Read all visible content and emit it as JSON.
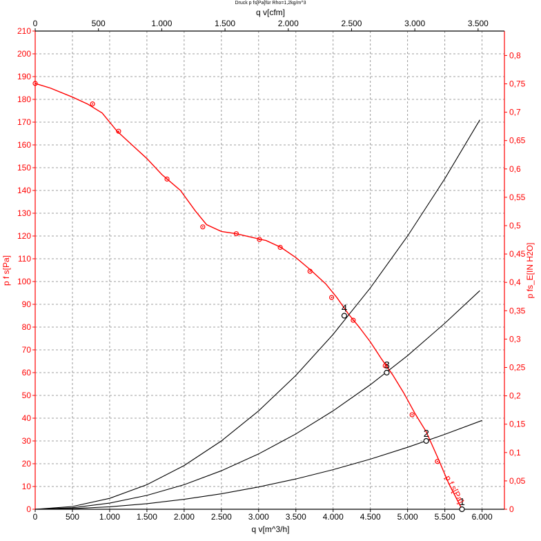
{
  "chart_data": {
    "type": "line",
    "title": "Druck p fs[Pa]für Rho=1,2kg/m^3",
    "top_axis": {
      "label": "q v[cfm]",
      "ticks": [
        "0",
        "500",
        "1.000",
        "1.500",
        "2.000",
        "2.500",
        "3.000",
        "3.500"
      ],
      "tick_values": [
        0,
        500,
        1000,
        1500,
        2000,
        2500,
        3000,
        3500
      ]
    },
    "x_axis": {
      "label": "q v[m^3/h]",
      "range": [
        0,
        6300
      ],
      "ticks": [
        "0",
        "500",
        "1.000",
        "1.500",
        "2.000",
        "2.500",
        "3.000",
        "3.500",
        "4.000",
        "4.500",
        "5.000",
        "5.500",
        "6.000"
      ],
      "tick_values": [
        0,
        500,
        1000,
        1500,
        2000,
        2500,
        3000,
        3500,
        4000,
        4500,
        5000,
        5500,
        6000
      ]
    },
    "y_axis_left": {
      "label": "p f s[Pa]",
      "range": [
        0,
        210
      ],
      "ticks": [
        "0",
        "10",
        "20",
        "30",
        "40",
        "50",
        "60",
        "70",
        "80",
        "90",
        "100",
        "110",
        "120",
        "130",
        "140",
        "150",
        "160",
        "170",
        "180",
        "190",
        "200",
        "210"
      ],
      "tick_values": [
        0,
        10,
        20,
        30,
        40,
        50,
        60,
        70,
        80,
        90,
        100,
        110,
        120,
        130,
        140,
        150,
        160,
        170,
        180,
        190,
        200,
        210
      ]
    },
    "y_axis_right": {
      "label": "p fs_E[IN H2O]",
      "ticks": [
        "0",
        "0,05",
        "0,1",
        "0,15",
        "0,2",
        "0,25",
        "0,3",
        "0,35",
        "0,4",
        "0,45",
        "0,5",
        "0,55",
        "0,6",
        "0,65",
        "0,7",
        "0,75",
        "0,8"
      ],
      "tick_values": [
        0,
        0.05,
        0.1,
        0.15,
        0.2,
        0.25,
        0.3,
        0.35,
        0.4,
        0.45,
        0.5,
        0.55,
        0.6,
        0.65,
        0.7,
        0.75,
        0.8
      ]
    },
    "grid": true,
    "colors": {
      "curve": "#ff0000",
      "axis": "#ff0000",
      "grid": "#808080",
      "system": "#000000",
      "text": "#000000"
    },
    "series": [
      {
        "name": "p f s[Pa]",
        "color": "#ff0000",
        "x": [
          0,
          200,
          500,
          700,
          900,
          1100,
          1300,
          1500,
          1700,
          1950,
          2150,
          2300,
          2500,
          2700,
          2900,
          3100,
          3300,
          3500,
          3700,
          3900,
          4050,
          4200,
          4350,
          4500,
          4650,
          4800,
          4950,
          5100,
          5250,
          5400,
          5550,
          5730
        ],
        "y": [
          187,
          185,
          181,
          178,
          174,
          166,
          160,
          154,
          147,
          140,
          131,
          125,
          122,
          121,
          119.5,
          118,
          115,
          110.5,
          105,
          99,
          93,
          86,
          80,
          73.5,
          66,
          59,
          51,
          42,
          34,
          23,
          11.5,
          0
        ]
      },
      {
        "name": "",
        "color": "#ff0000",
        "style": "markers",
        "x": [
          0,
          770,
          1120,
          1770,
          2250,
          2700,
          3010,
          3290,
          3690,
          3980,
          4270,
          4700,
          5060,
          5400
        ],
        "y": [
          187,
          178,
          166,
          145,
          124,
          121,
          118.5,
          115,
          104.5,
          93,
          83,
          63,
          41.5,
          21
        ]
      },
      {
        "name": "4",
        "color": "#000000",
        "x": [
          0,
          500,
          1000,
          1500,
          2000,
          2500,
          3000,
          3500,
          4000,
          4500,
          5000,
          5500,
          5970
        ],
        "y": [
          0,
          1.2,
          4.8,
          10.8,
          19.2,
          30,
          43.2,
          58.8,
          76.8,
          97.2,
          120,
          145.2,
          171
        ]
      },
      {
        "name": "3",
        "color": "#000000",
        "x": [
          0,
          500,
          1000,
          1500,
          2000,
          2500,
          3000,
          3500,
          4000,
          4500,
          5000,
          5500,
          5970
        ],
        "y": [
          0,
          0.68,
          2.7,
          6.1,
          10.8,
          16.9,
          24.3,
          33.1,
          43.2,
          54.7,
          67.5,
          81.7,
          96
        ]
      },
      {
        "name": "2",
        "color": "#000000",
        "x": [
          0,
          500,
          1000,
          1500,
          2000,
          2500,
          3000,
          3500,
          4000,
          4500,
          5000,
          5500,
          6000
        ],
        "y": [
          0,
          0.27,
          1.09,
          2.45,
          4.35,
          6.8,
          9.8,
          13.3,
          17.4,
          22,
          27.2,
          32.9,
          39
        ]
      }
    ],
    "operating_points": [
      {
        "label": "4",
        "x": 4150,
        "y": 85
      },
      {
        "label": "3",
        "x": 4720,
        "y": 60
      },
      {
        "label": "2",
        "x": 5250,
        "y": 30
      },
      {
        "label": "1",
        "x": 5730,
        "y": 0
      }
    ],
    "curve_label": "p f s[Pa]"
  }
}
